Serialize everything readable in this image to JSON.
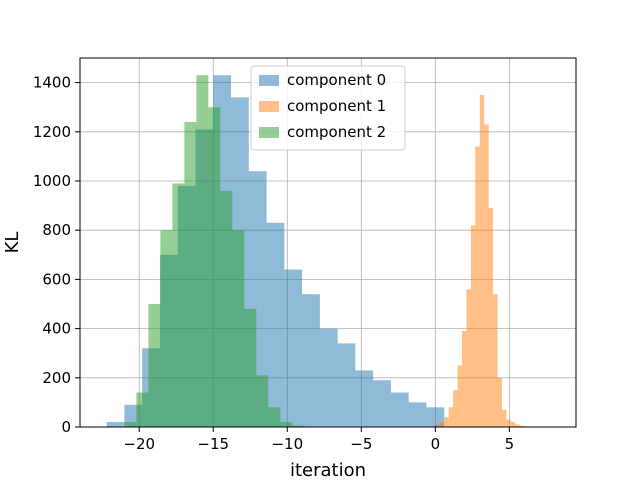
{
  "chart_data": {
    "type": "histogram",
    "title": "",
    "xlabel": "iteration",
    "ylabel": "KL",
    "xlim": [
      -24.0,
      9.5
    ],
    "ylim": [
      0,
      1500
    ],
    "xticks": [
      -20,
      -15,
      -10,
      -5,
      0,
      5
    ],
    "xtick_labels": [
      "−20",
      "−15",
      "−10",
      "−5",
      "0",
      "5"
    ],
    "yticks": [
      0,
      200,
      400,
      600,
      800,
      1000,
      1200,
      1400
    ],
    "grid": true,
    "legend_position": "top-center",
    "series": [
      {
        "name": "component 0",
        "color": "#1f77b4",
        "alpha": 0.5,
        "bin_start": -22.2,
        "bin_width": 1.2,
        "counts": [
          20,
          90,
          320,
          700,
          980,
          1210,
          1430,
          1340,
          1040,
          830,
          640,
          540,
          400,
          340,
          230,
          190,
          140,
          100,
          80
        ]
      },
      {
        "name": "component 1",
        "color": "#ff7f0e",
        "alpha": 0.5,
        "bin_start": 0.0,
        "bin_width": 0.3,
        "counts": [
          10,
          20,
          40,
          80,
          150,
          250,
          390,
          560,
          820,
          1140,
          1350,
          1230,
          890,
          540,
          200,
          70,
          30,
          20,
          10,
          5,
          3,
          2
        ]
      },
      {
        "name": "component 2",
        "color": "#2ca02c",
        "alpha": 0.5,
        "bin_start": -21.0,
        "bin_width": 0.81,
        "counts": [
          20,
          140,
          500,
          800,
          990,
          1240,
          1430,
          1300,
          960,
          800,
          480,
          210,
          80,
          20,
          5
        ]
      }
    ]
  }
}
